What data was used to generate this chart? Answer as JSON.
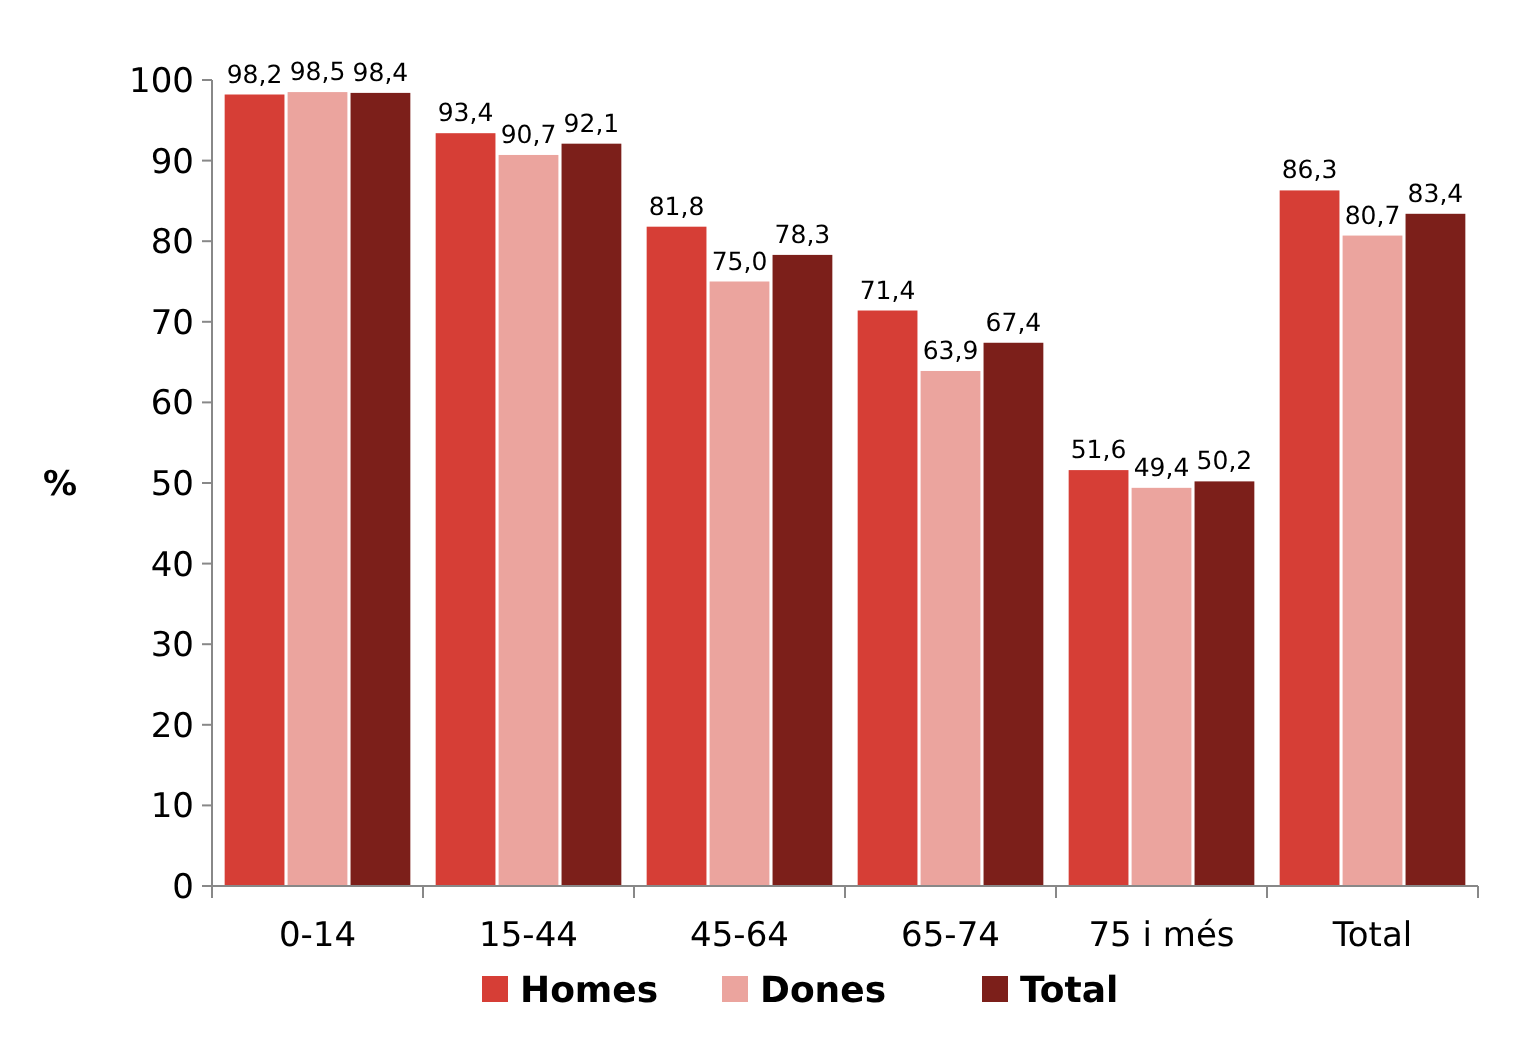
{
  "chart_data": {
    "type": "bar",
    "ylabel": "%",
    "categories": [
      "0-14",
      "15-44",
      "45-64",
      "65-74",
      "75 i més",
      "Total"
    ],
    "series": [
      {
        "name": "Homes",
        "color": "#d63e36",
        "values": [
          98.2,
          93.4,
          81.8,
          71.4,
          51.6,
          86.3
        ],
        "value_labels": [
          "98,2",
          "93,4",
          "81,8",
          "71,4",
          "51,6",
          "86,3"
        ]
      },
      {
        "name": "Dones",
        "color": "#eba49e",
        "values": [
          98.5,
          90.7,
          75.0,
          63.9,
          49.4,
          80.7
        ],
        "value_labels": [
          "98,5",
          "90,7",
          "75,0",
          "63,9",
          "49,4",
          "80,7"
        ]
      },
      {
        "name": "Total",
        "color": "#7c1f1a",
        "values": [
          98.4,
          92.1,
          78.3,
          67.4,
          50.2,
          83.4
        ],
        "value_labels": [
          "98,4",
          "92,1",
          "78,3",
          "67,4",
          "50,2",
          "83,4"
        ]
      }
    ],
    "ylim": [
      0,
      100
    ],
    "yticks": [
      0,
      10,
      20,
      30,
      40,
      50,
      60,
      70,
      80,
      90,
      100
    ],
    "grid": false,
    "legend": "bottom"
  }
}
